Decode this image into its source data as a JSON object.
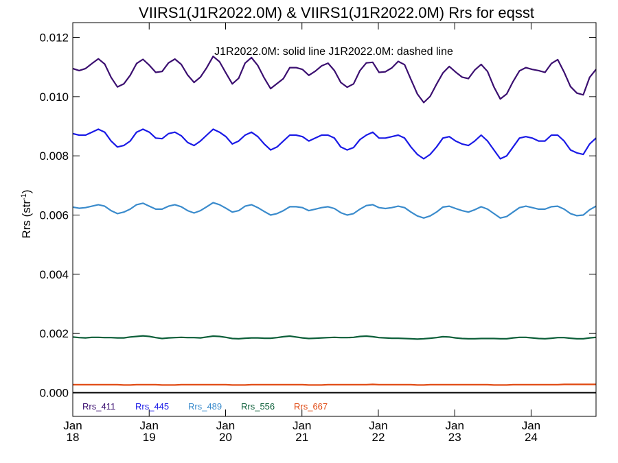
{
  "chart_data": {
    "type": "line",
    "title": "VIIRS1(J1R2022.0M) & VIIRS1(J1R2022.0M)  Rrs for eqsst",
    "annotation": "J1R2022.0M: solid line   J1R2022.0M: dashed line",
    "ylabel": "Rrs (str",
    "ylabel_sup": "-1",
    "ylabel_close": ")",
    "xlabel": "",
    "xlim": [
      2018.0,
      2024.85
    ],
    "ylim": [
      -0.0008,
      0.0125
    ],
    "yticks": [
      "0.000",
      "0.002",
      "0.004",
      "0.006",
      "0.008",
      "0.010",
      "0.012"
    ],
    "ytick_values": [
      0.0,
      0.002,
      0.004,
      0.006,
      0.008,
      0.01,
      0.012
    ],
    "xticks": [
      {
        "value": 2018,
        "line1": "Jan",
        "line2": "18"
      },
      {
        "value": 2019,
        "line1": "Jan",
        "line2": "19"
      },
      {
        "value": 2020,
        "line1": "Jan",
        "line2": "20"
      },
      {
        "value": 2021,
        "line1": "Jan",
        "line2": "21"
      },
      {
        "value": 2022,
        "line1": "Jan",
        "line2": "22"
      },
      {
        "value": 2023,
        "line1": "Jan",
        "line2": "23"
      },
      {
        "value": 2024,
        "line1": "Jan",
        "line2": "24"
      }
    ],
    "zero_line": true,
    "legend_placement": "bottom-left",
    "series": [
      {
        "name": "Rrs_411",
        "color": "#3b0f70",
        "values": [
          0.01095,
          0.01088,
          0.01095,
          0.01112,
          0.01128,
          0.0111,
          0.01065,
          0.01033,
          0.01043,
          0.01072,
          0.01112,
          0.01126,
          0.01106,
          0.01082,
          0.01085,
          0.01114,
          0.01127,
          0.01109,
          0.01073,
          0.01048,
          0.01066,
          0.01098,
          0.01136,
          0.01118,
          0.0108,
          0.01043,
          0.01062,
          0.01113,
          0.01132,
          0.01105,
          0.01063,
          0.01027,
          0.01044,
          0.01061,
          0.01098,
          0.01098,
          0.01092,
          0.01072,
          0.01086,
          0.01104,
          0.01113,
          0.01088,
          0.01048,
          0.01032,
          0.01043,
          0.01088,
          0.01114,
          0.01116,
          0.01082,
          0.01084,
          0.01097,
          0.01119,
          0.01108,
          0.01058,
          0.01009,
          0.0098,
          0.01001,
          0.01042,
          0.0108,
          0.01102,
          0.01083,
          0.01066,
          0.01061,
          0.0109,
          0.01109,
          0.01085,
          0.01033,
          0.00992,
          0.01009,
          0.01051,
          0.01087,
          0.01098,
          0.01092,
          0.01088,
          0.01082,
          0.01112,
          0.01125,
          0.01083,
          0.01034,
          0.01012,
          0.01006,
          0.01065,
          0.01092
        ]
      },
      {
        "name": "Rrs_445",
        "color": "#1a1ae6",
        "values": [
          0.00875,
          0.0087,
          0.0087,
          0.0088,
          0.0089,
          0.0088,
          0.0085,
          0.0083,
          0.00835,
          0.0085,
          0.0088,
          0.0089,
          0.0088,
          0.0086,
          0.00858,
          0.00875,
          0.0088,
          0.00868,
          0.00845,
          0.00835,
          0.0085,
          0.0087,
          0.0089,
          0.0088,
          0.00865,
          0.0084,
          0.0085,
          0.0087,
          0.0088,
          0.00865,
          0.0084,
          0.0082,
          0.0083,
          0.0085,
          0.0087,
          0.0087,
          0.00865,
          0.0085,
          0.0086,
          0.0087,
          0.0087,
          0.0086,
          0.0083,
          0.0082,
          0.00828,
          0.00855,
          0.0087,
          0.0088,
          0.0086,
          0.0086,
          0.00865,
          0.0087,
          0.0086,
          0.0083,
          0.00805,
          0.0079,
          0.00805,
          0.0083,
          0.0086,
          0.00865,
          0.0085,
          0.0084,
          0.00835,
          0.0085,
          0.0087,
          0.0085,
          0.0082,
          0.0079,
          0.008,
          0.0083,
          0.0086,
          0.00865,
          0.0086,
          0.0085,
          0.0085,
          0.0087,
          0.0087,
          0.0085,
          0.0082,
          0.0081,
          0.00805,
          0.0084,
          0.0086
        ]
      },
      {
        "name": "Rrs_489",
        "color": "#3a8bcc",
        "values": [
          0.00627,
          0.00623,
          0.00625,
          0.0063,
          0.00635,
          0.0063,
          0.00615,
          0.00605,
          0.0061,
          0.0062,
          0.00635,
          0.0064,
          0.0063,
          0.0062,
          0.0062,
          0.0063,
          0.00635,
          0.00628,
          0.00615,
          0.00607,
          0.00615,
          0.00628,
          0.00642,
          0.00635,
          0.00623,
          0.0061,
          0.00615,
          0.0063,
          0.00635,
          0.00625,
          0.00612,
          0.006,
          0.00605,
          0.00615,
          0.00628,
          0.00628,
          0.00625,
          0.00615,
          0.0062,
          0.00625,
          0.00628,
          0.00622,
          0.00608,
          0.006,
          0.00605,
          0.0062,
          0.00632,
          0.00635,
          0.00625,
          0.00622,
          0.00625,
          0.0063,
          0.00625,
          0.0061,
          0.00597,
          0.0059,
          0.00597,
          0.0061,
          0.00627,
          0.0063,
          0.00622,
          0.00615,
          0.0061,
          0.00618,
          0.00628,
          0.0062,
          0.00605,
          0.0059,
          0.00595,
          0.0061,
          0.00625,
          0.0063,
          0.00625,
          0.0062,
          0.0062,
          0.00628,
          0.0063,
          0.0062,
          0.00605,
          0.00598,
          0.006,
          0.00618,
          0.0063
        ]
      },
      {
        "name": "Rrs_556",
        "color": "#0b5e38",
        "values": [
          0.00188,
          0.00186,
          0.00185,
          0.00187,
          0.00187,
          0.00186,
          0.00186,
          0.00185,
          0.00185,
          0.00188,
          0.0019,
          0.00192,
          0.0019,
          0.00186,
          0.00183,
          0.00185,
          0.00186,
          0.00187,
          0.00186,
          0.00186,
          0.00185,
          0.00188,
          0.00191,
          0.0019,
          0.00187,
          0.00183,
          0.00182,
          0.00184,
          0.00185,
          0.00185,
          0.00184,
          0.00184,
          0.00186,
          0.00189,
          0.00191,
          0.00188,
          0.00185,
          0.00183,
          0.00184,
          0.00185,
          0.00186,
          0.00187,
          0.00186,
          0.00186,
          0.00187,
          0.0019,
          0.00191,
          0.00189,
          0.00186,
          0.00185,
          0.00184,
          0.00184,
          0.00183,
          0.00182,
          0.00181,
          0.00182,
          0.00184,
          0.00186,
          0.00189,
          0.00188,
          0.00185,
          0.00183,
          0.00182,
          0.00182,
          0.00183,
          0.00183,
          0.00183,
          0.00182,
          0.00182,
          0.00185,
          0.00187,
          0.00187,
          0.00185,
          0.00183,
          0.00182,
          0.00184,
          0.00186,
          0.00186,
          0.00184,
          0.00182,
          0.00182,
          0.00185,
          0.00187
        ]
      },
      {
        "name": "Rrs_667",
        "color": "#e0470f",
        "values": [
          0.00027,
          0.00027,
          0.00027,
          0.00027,
          0.00027,
          0.00027,
          0.00027,
          0.00027,
          0.00026,
          0.00026,
          0.00027,
          0.00027,
          0.00027,
          0.00027,
          0.00026,
          0.00026,
          0.00026,
          0.00027,
          0.00027,
          0.00027,
          0.00027,
          0.00027,
          0.00027,
          0.00027,
          0.00027,
          0.00026,
          0.00026,
          0.00026,
          0.00027,
          0.00027,
          0.00027,
          0.00027,
          0.00027,
          0.00027,
          0.00027,
          0.00027,
          0.00027,
          0.00026,
          0.00026,
          0.00026,
          0.00027,
          0.00027,
          0.00027,
          0.00027,
          0.00027,
          0.00027,
          0.00027,
          0.00028,
          0.00027,
          0.00027,
          0.00027,
          0.00027,
          0.00027,
          0.00027,
          0.00026,
          0.00026,
          0.00027,
          0.00027,
          0.00027,
          0.00027,
          0.00027,
          0.00027,
          0.00027,
          0.00027,
          0.00027,
          0.00027,
          0.00026,
          0.00026,
          0.00026,
          0.00027,
          0.00027,
          0.00027,
          0.00027,
          0.00027,
          0.00027,
          0.00027,
          0.00027,
          0.00028,
          0.00028,
          0.00028,
          0.00028,
          0.00028,
          0.00028
        ]
      }
    ]
  }
}
